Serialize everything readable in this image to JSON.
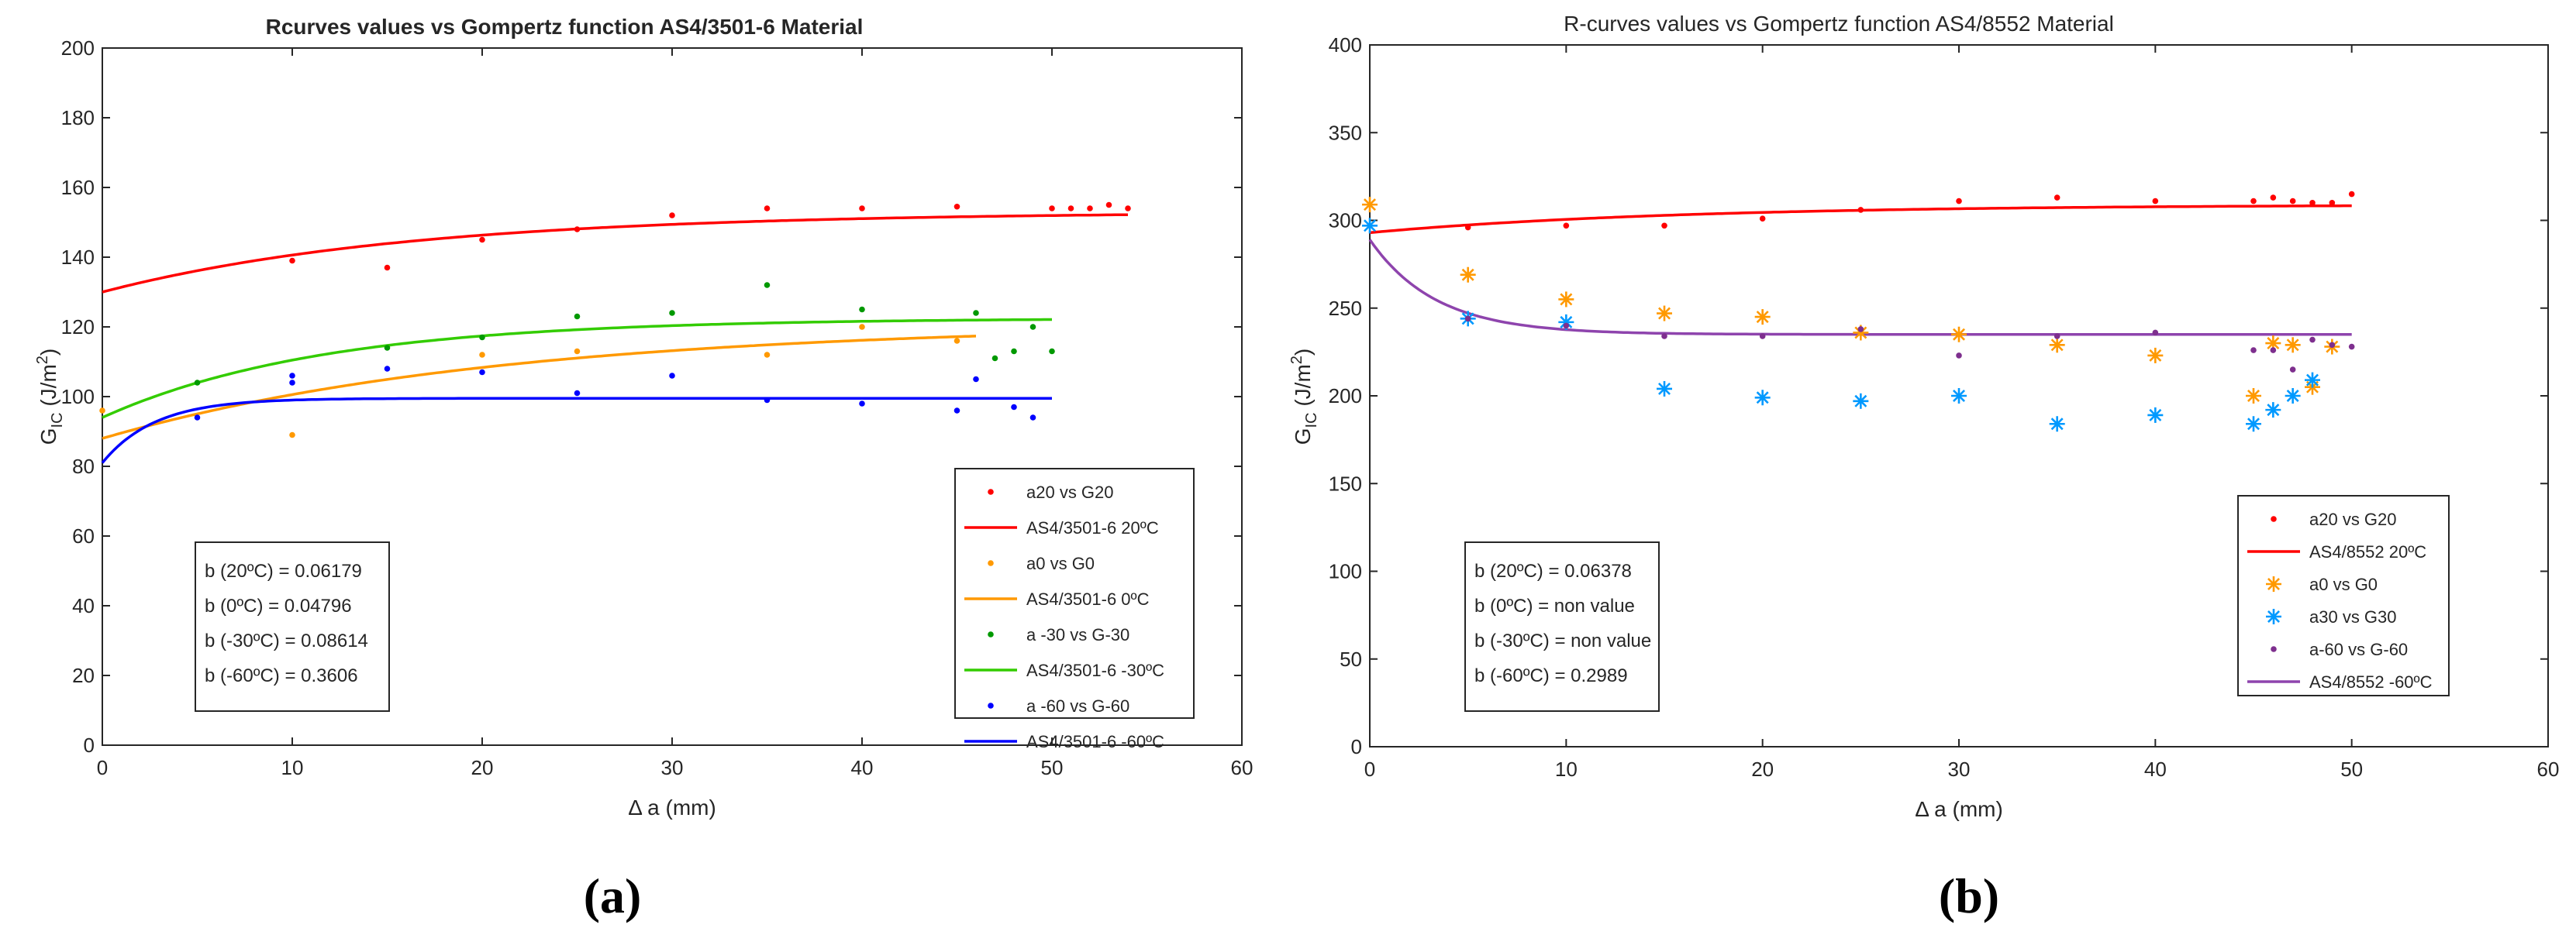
{
  "chart_data": [
    {
      "type": "scatter",
      "panel_label": "(a)",
      "title": "Rcurves values vs Gompertz function AS4/3501-6 Material",
      "xlabel": "Δ a (mm)",
      "ylabel_main": "G",
      "ylabel_sub": "IC",
      "ylabel_unit": " (J/m",
      "ylabel_sup": "2",
      "ylabel_end": ")",
      "xlim": [
        0,
        60
      ],
      "ylim": [
        0,
        200
      ],
      "xticks": [
        0,
        10,
        20,
        30,
        40,
        50,
        60
      ],
      "yticks": [
        0,
        20,
        40,
        60,
        80,
        100,
        120,
        140,
        160,
        180,
        200
      ],
      "legend_position": "bottom-right",
      "series": [
        {
          "name": "a20 vs G20",
          "kind": "points",
          "marker": "dot",
          "color": "#ff0000",
          "x": [
            10,
            15,
            20,
            25,
            30,
            35,
            40,
            45,
            50,
            51,
            52,
            53,
            54
          ],
          "y": [
            139,
            137,
            145,
            148,
            152,
            154,
            154,
            154.5,
            154,
            154,
            154,
            155,
            154
          ]
        },
        {
          "name": "AS4/3501-6 20ºC",
          "kind": "line",
          "color": "#ff0000",
          "curve": {
            "base": 130,
            "top": 153,
            "b": 0.06179,
            "x_end": 54
          }
        },
        {
          "name": "a0 vs G0",
          "kind": "points",
          "marker": "dot",
          "color": "#ff9900",
          "x": [
            0,
            10,
            20,
            25,
            35,
            40,
            45
          ],
          "y": [
            96,
            89,
            112,
            113,
            112,
            120,
            116
          ]
        },
        {
          "name": "AS4/3501-6 0ºC",
          "kind": "line",
          "color": "#ff9900",
          "curve": {
            "base": 88,
            "top": 121,
            "b": 0.04796,
            "x_end": 46
          }
        },
        {
          "name": "a -30 vs G-30",
          "kind": "points",
          "marker": "dot",
          "color": "#009900",
          "x": [
            5,
            15,
            20,
            25,
            30,
            35,
            40,
            46,
            47,
            48,
            49,
            50
          ],
          "y": [
            104,
            114,
            117,
            123,
            124,
            132,
            125,
            124,
            111,
            113,
            120,
            113
          ]
        },
        {
          "name": "AS4/3501-6 -30ºC",
          "kind": "line",
          "color": "#33cc00",
          "curve": {
            "base": 94,
            "top": 122.5,
            "b": 0.08614,
            "x_end": 50
          }
        },
        {
          "name": "a -60 vs G-60",
          "kind": "points",
          "marker": "dot",
          "color": "#0000ff",
          "x": [
            5,
            10,
            10,
            15,
            20,
            25,
            30,
            35,
            40,
            45,
            46,
            48,
            49
          ],
          "y": [
            94,
            106,
            104,
            108,
            107,
            101,
            106,
            99,
            98,
            96,
            105,
            97,
            94
          ]
        },
        {
          "name": "AS4/3501-6 -60ºC",
          "kind": "line",
          "color": "#0000ff",
          "curve": {
            "base": 81,
            "top": 99.5,
            "b": 0.3606,
            "x_end": 50
          }
        }
      ],
      "annotation_lines": [
        "b (20ºC) = 0.06179",
        "b (0ºC) = 0.04796",
        "b (-30ºC) = 0.08614",
        "b (-60ºC) = 0.3606"
      ]
    },
    {
      "type": "scatter",
      "panel_label": "(b)",
      "title": "R-curves values vs Gompertz function AS4/8552 Material",
      "xlabel": "Δ a (mm)",
      "ylabel_main": "G",
      "ylabel_sub": "IC",
      "ylabel_unit": " (J/m",
      "ylabel_sup": "2",
      "ylabel_end": ")",
      "xlim": [
        0,
        60
      ],
      "ylim": [
        0,
        400
      ],
      "xticks": [
        0,
        10,
        20,
        30,
        40,
        50,
        60
      ],
      "yticks": [
        0,
        50,
        100,
        150,
        200,
        250,
        300,
        350,
        400
      ],
      "legend_position": "bottom-right",
      "series": [
        {
          "name": "a20 vs G20",
          "kind": "points",
          "marker": "dot",
          "color": "#ff0000",
          "x": [
            5,
            10,
            15,
            20,
            25,
            30,
            35,
            40,
            45,
            46,
            47,
            48,
            49,
            50
          ],
          "y": [
            296,
            297,
            297,
            301,
            306,
            311,
            313,
            311,
            311,
            313,
            311,
            310,
            310,
            315
          ]
        },
        {
          "name": "AS4/8552 20ºC",
          "kind": "line",
          "color": "#ff0000",
          "curve": {
            "base": 293,
            "top": 309,
            "b": 0.06378,
            "x_end": 50
          }
        },
        {
          "name": "a0 vs G0",
          "kind": "points",
          "marker": "star",
          "color": "#ff9900",
          "x": [
            0,
            5,
            10,
            15,
            20,
            25,
            30,
            35,
            40,
            45,
            46,
            47,
            48,
            49
          ],
          "y": [
            309,
            269,
            255,
            247,
            245,
            236,
            235,
            229,
            223,
            200,
            230,
            229,
            205,
            228
          ]
        },
        {
          "name": "a30 vs G30",
          "kind": "points",
          "marker": "star",
          "color": "#0099ff",
          "x": [
            0,
            5,
            10,
            15,
            20,
            25,
            30,
            35,
            40,
            45,
            46,
            47,
            48
          ],
          "y": [
            297,
            244,
            242,
            204,
            199,
            197,
            200,
            184,
            189,
            184,
            192,
            200,
            209
          ]
        },
        {
          "name": "a-60 vs G-60",
          "kind": "points",
          "marker": "dot",
          "color": "#7e2f8e",
          "x": [
            5,
            10,
            15,
            20,
            25,
            30,
            35,
            40,
            45,
            46,
            47,
            48,
            49,
            50
          ],
          "y": [
            244,
            240,
            234,
            234,
            238,
            223,
            234,
            236,
            226,
            226,
            215,
            232,
            229,
            228
          ]
        },
        {
          "name": "AS4/8552 -60ºC",
          "kind": "line",
          "color": "#8e44ad",
          "curve": {
            "base": 289,
            "top": 235,
            "b": 0.2989,
            "x_end": 50
          }
        }
      ],
      "annotation_lines": [
        "b (20ºC) = 0.06378",
        "b (0ºC) = non value",
        "b (-30ºC) = non value",
        "b (-60ºC) = 0.2989"
      ]
    }
  ]
}
